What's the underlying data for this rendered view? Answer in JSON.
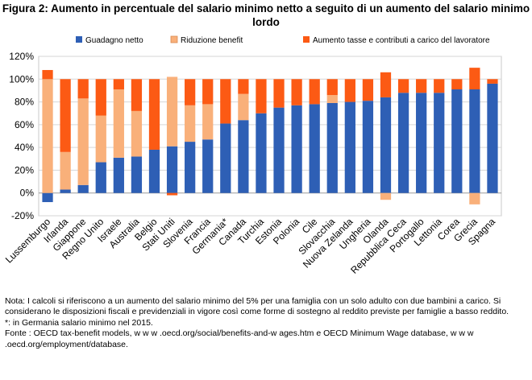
{
  "title_line1": "Figura 2: Aumento in percentuale del salario minimo netto a seguito di un aumento del salario minimo",
  "title_line2": "lordo",
  "chart_data": {
    "type": "bar",
    "stacked": true,
    "categories": [
      "Lussemburgo",
      "Irlanda",
      "Giappone",
      "Regno Unito",
      "Israele",
      "Australia",
      "Belgio",
      "Stati Uniti",
      "Slovenia",
      "Francia",
      "Germania*",
      "Canada",
      "Turchia",
      "Estonia",
      "Polonia",
      "Cile",
      "Slovacchia",
      "Nuova Zelanda",
      "Ungheria",
      "Olanda",
      "Repubblica Ceca",
      "Portogallo",
      "Lettonia",
      "Corea",
      "Grecia",
      "Spagna"
    ],
    "series": [
      {
        "name": "Guadagno netto",
        "color": "#2e5fb5",
        "values": [
          -8,
          3,
          7,
          27,
          31,
          32,
          38,
          41,
          45,
          47,
          61,
          64,
          70,
          75,
          77,
          78,
          79,
          80,
          81,
          84,
          88,
          88,
          88,
          91,
          91,
          96
        ]
      },
      {
        "name": "Riduzione benefit",
        "color": "#f9b07a",
        "values": [
          100,
          33,
          76,
          41,
          60,
          40,
          0,
          61,
          32,
          31,
          0,
          23,
          0,
          0,
          0,
          0,
          7,
          0,
          0,
          -6,
          0,
          0,
          0,
          0,
          -10,
          0
        ]
      },
      {
        "name": "Aumento tasse e contributi a carico del lavoratore",
        "color": "#fc5a14",
        "values": [
          8,
          64,
          17,
          32,
          9,
          28,
          62,
          -2,
          23,
          22,
          39,
          13,
          30,
          25,
          23,
          22,
          14,
          20,
          19,
          22,
          12,
          12,
          12,
          9,
          19,
          4
        ]
      }
    ],
    "xlabel": "",
    "ylabel": "",
    "ylim": [
      -20,
      120
    ],
    "yticks": [
      -20,
      0,
      20,
      40,
      60,
      80,
      100,
      120
    ],
    "ytick_labels": [
      "-20%",
      "0%",
      "20%",
      "40%",
      "60%",
      "80%",
      "100%",
      "120%"
    ],
    "grid": true,
    "legend_position": "top"
  },
  "notes": {
    "nota": "Nota: I calcoli si riferiscono a un aumento del salario minimo del 5% per una famiglia con un solo adulto con due bambini a carico. Si considerano le disposizioni fiscali e previdenziali in vigore così come forme di sostegno al reddito previste per famiglie a basso reddito.",
    "germania": "*: in Germania salario minimo nel 2015.",
    "fonte": "Fonte : OECD tax-benefit models, w w w .oecd.org/social/benefits-and-w ages.htm e OECD Minimum Wage database, w w w .oecd.org/employment/database."
  }
}
